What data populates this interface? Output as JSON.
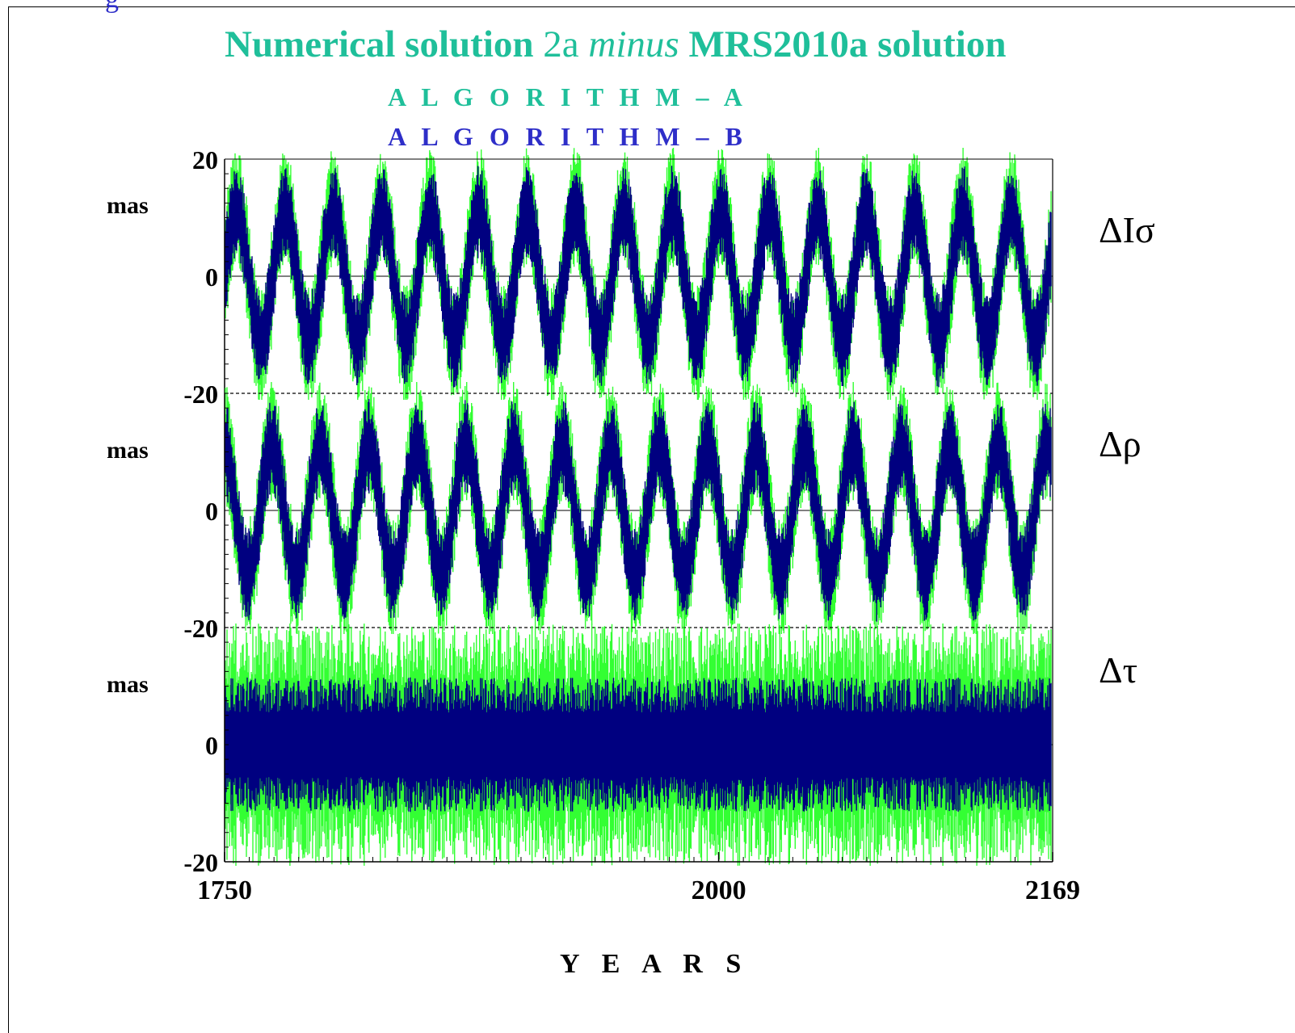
{
  "figure": {
    "corner_glyph": "g",
    "title_part1": "Numerical solution",
    "title_part2": "2a",
    "title_part3": "minus",
    "title_part4": "MRS2010a solution",
    "legend_a": "A L G O R I T H M – A",
    "legend_b": "A L G O R I T H M – B",
    "xlabel": "Y E A R S"
  },
  "colors": {
    "title": "#1fbf9a",
    "algorithm_a": "#33ff33",
    "algorithm_b": "#000080",
    "legend_b_text": "#2e2ec8"
  },
  "chart_data": [
    {
      "type": "line",
      "panel_label": "ΔIσ",
      "ylabel": "mas",
      "yticks": [
        "20",
        "0",
        "-20"
      ],
      "ylim": [
        -20,
        20
      ],
      "xlim": [
        1750,
        2169
      ],
      "grid": false,
      "zero_line": true,
      "series": [
        {
          "name": "A L G O R I T H M – A",
          "color": "#33ff33",
          "mean": 0,
          "cycle_period_years": 24.5,
          "cycle_amplitude": 12,
          "noise_amplitude": 9
        },
        {
          "name": "A L G O R I T H M – B",
          "color": "#000080",
          "mean": 0,
          "cycle_period_years": 24.5,
          "cycle_amplitude": 11,
          "noise_amplitude": 7
        }
      ]
    },
    {
      "type": "line",
      "panel_label": "Δρ",
      "ylabel": "mas",
      "yticks": [
        "20",
        "0",
        "-20"
      ],
      "ylim": [
        -20,
        20
      ],
      "xlim": [
        1750,
        2169
      ],
      "grid": false,
      "zero_line": true,
      "series": [
        {
          "name": "A L G O R I T H M – A",
          "color": "#33ff33",
          "mean": 0,
          "cycle_period_years": 24.5,
          "cycle_amplitude": 12,
          "noise_amplitude": 9
        },
        {
          "name": "A L G O R I T H M – B",
          "color": "#000080",
          "mean": 0,
          "cycle_period_years": 24.5,
          "cycle_amplitude": 11,
          "noise_amplitude": 7
        }
      ]
    },
    {
      "type": "line",
      "panel_label": "Δτ",
      "ylabel": "mas",
      "yticks": [
        "20",
        "0",
        "-20"
      ],
      "ylim": [
        -20,
        20
      ],
      "xlim": [
        1750,
        2169
      ],
      "xticks": [
        "1750",
        "2000",
        "2169"
      ],
      "xlabel": "Y E A R S",
      "grid": false,
      "zero_line": true,
      "series": [
        {
          "name": "A L G O R I T H M – A",
          "color": "#33ff33",
          "mean": 0,
          "cycle_period_years": 0,
          "cycle_amplitude": 0,
          "noise_amplitude": 18
        },
        {
          "name": "A L G O R I T H M – B",
          "color": "#000080",
          "mean": 0,
          "cycle_period_years": 0,
          "cycle_amplitude": 0,
          "noise_amplitude": 10
        }
      ]
    }
  ]
}
